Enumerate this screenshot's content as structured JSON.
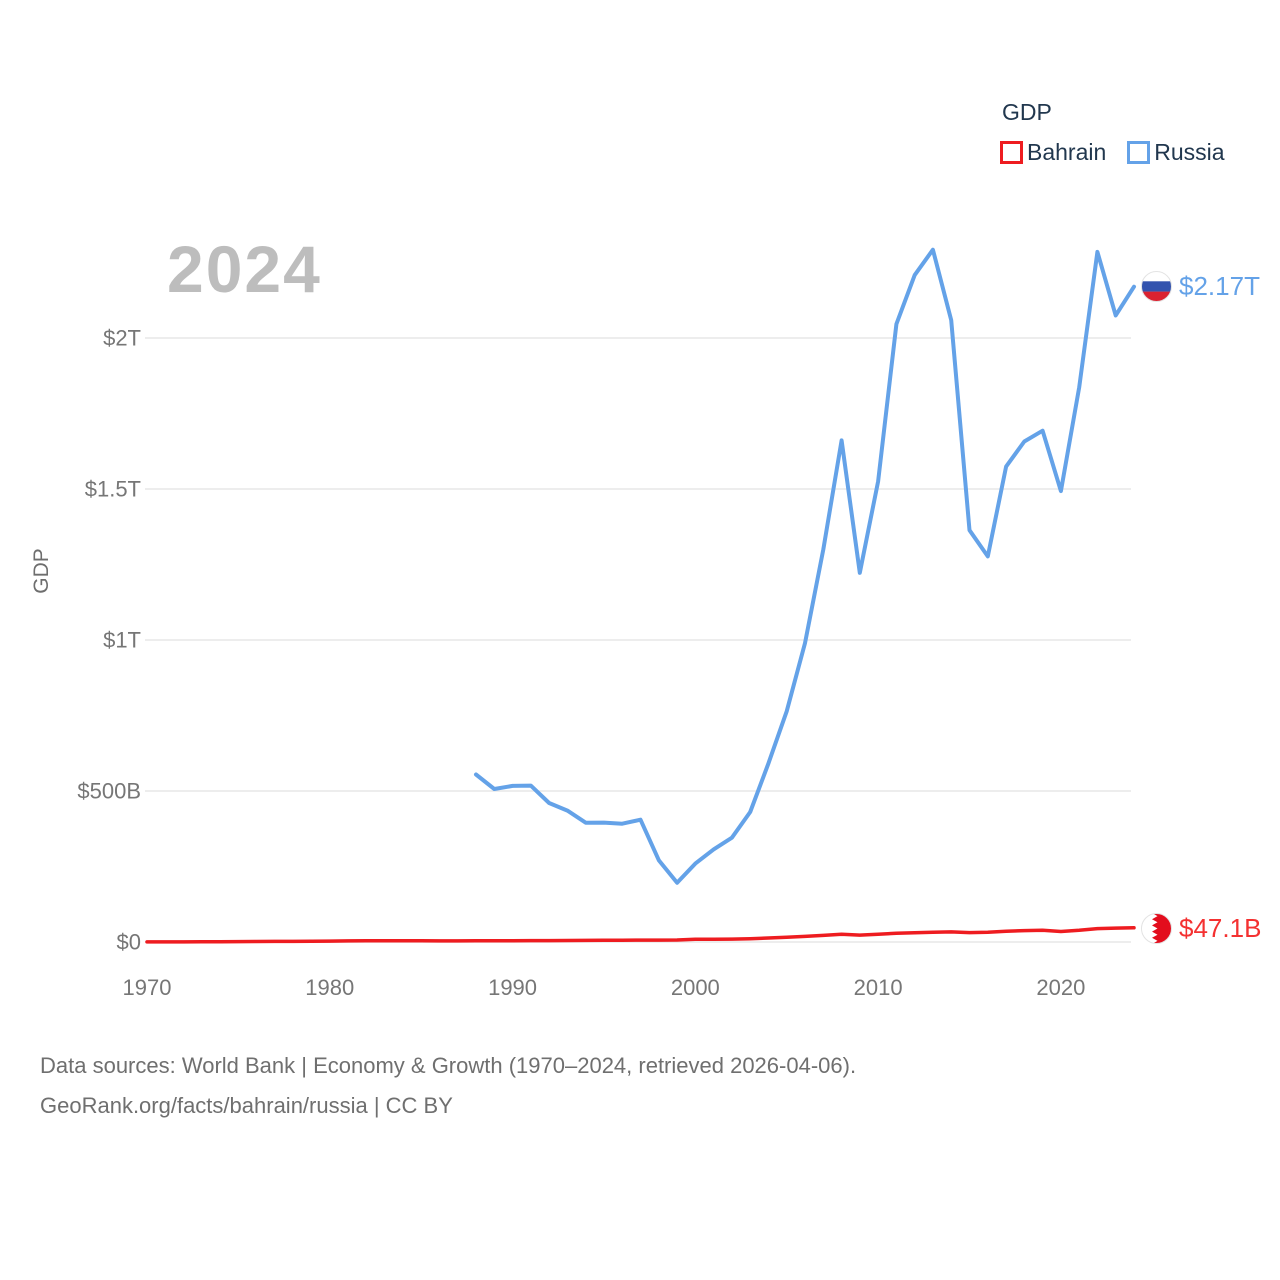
{
  "legend": {
    "title": "GDP",
    "items": [
      {
        "label": "Bahrain",
        "color": "#ee1c20"
      },
      {
        "label": "Russia",
        "color": "#64a2e8"
      }
    ]
  },
  "chart_data": {
    "type": "line",
    "title": "2024",
    "xlabel": "",
    "ylabel": "GDP",
    "grid": true,
    "legend_position": "top-right",
    "x_range": [
      1970,
      2024
    ],
    "ylim_billion_usd": [
      0,
      2400
    ],
    "x_ticks": [
      1970,
      1980,
      1990,
      2000,
      2010,
      2020
    ],
    "y_ticks": [
      {
        "value": 0,
        "label": "$0"
      },
      {
        "value": 500,
        "label": "$500B"
      },
      {
        "value": 1000,
        "label": "$1T"
      },
      {
        "value": 1500,
        "label": "$1.5T"
      },
      {
        "value": 2000,
        "label": "$2T"
      }
    ],
    "series": [
      {
        "name": "Bahrain",
        "color": "#ee1c20",
        "end_label": "$47.1B",
        "end_flag_icon": "bahrain-flag-icon",
        "start_year": 1970,
        "values_billion_usd": [
          0.31,
          0.36,
          0.43,
          0.57,
          1.0,
          1.17,
          1.56,
          1.86,
          2.07,
          2.57,
          3.07,
          3.73,
          4.02,
          4.06,
          4.32,
          4.0,
          3.5,
          3.69,
          4.08,
          4.21,
          4.23,
          4.54,
          4.75,
          5.06,
          5.29,
          5.85,
          6.1,
          6.35,
          6.18,
          6.62,
          9.06,
          8.98,
          9.61,
          11.07,
          13.15,
          15.97,
          18.51,
          21.73,
          25.71,
          22.94,
          25.71,
          28.78,
          30.75,
          32.54,
          33.39,
          31.05,
          32.23,
          35.47,
          37.65,
          38.65,
          34.72,
          38.87,
          44.39,
          46.1,
          47.1
        ]
      },
      {
        "name": "Russia",
        "color": "#64a2e8",
        "end_label": "$2.17T",
        "end_flag_icon": "russia-flag-icon",
        "start_year": 1988,
        "values_billion_usd": [
          554.7,
          506.5,
          516.8,
          518.0,
          460.3,
          435.1,
          395.1,
          395.5,
          391.7,
          404.9,
          271.0,
          195.9,
          259.7,
          306.6,
          345.5,
          430.3,
          591.0,
          764.0,
          989.9,
          1299.7,
          1660.8,
          1222.6,
          1524.9,
          2045.9,
          2208.3,
          2292.5,
          2059.2,
          1363.5,
          1276.8,
          1574.2,
          1657.3,
          1693.1,
          1493.1,
          1836.9,
          2285.0,
          2075.0,
          2170.0
        ]
      }
    ]
  },
  "footer": {
    "line1": "Data sources: World Bank | Economy & Growth (1970–2024, retrieved 2026-04-06).",
    "line2": "GeoRank.org/facts/bahrain/russia | CC BY"
  }
}
